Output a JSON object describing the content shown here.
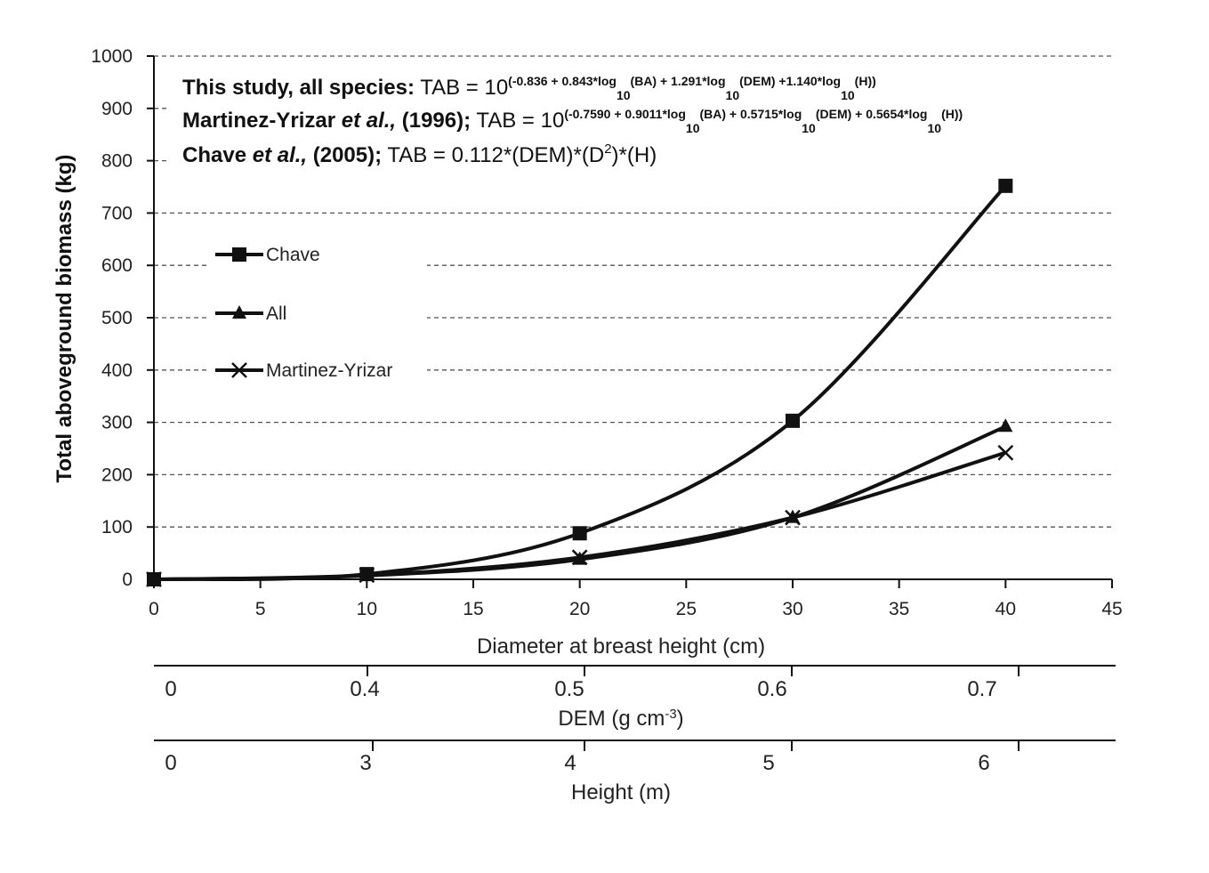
{
  "chart_data": {
    "type": "line",
    "ylabel": "Total aboveground biomass (kg)",
    "xlabel": "Diameter at breast height (cm)",
    "xlim": [
      0,
      45
    ],
    "ylim": [
      0,
      1000
    ],
    "x_ticks": [
      0,
      5,
      10,
      15,
      20,
      25,
      30,
      35,
      40,
      45
    ],
    "y_ticks": [
      0,
      100,
      200,
      300,
      400,
      500,
      600,
      700,
      800,
      900,
      1000
    ],
    "grid": true,
    "x": [
      0,
      10,
      20,
      30,
      40
    ],
    "series": [
      {
        "name": "Chave",
        "marker": "square",
        "values": [
          0,
          10,
          88,
          303,
          752
        ]
      },
      {
        "name": "All",
        "marker": "triangle",
        "values": [
          0,
          7,
          38,
          118,
          292
        ]
      },
      {
        "name": "Martinez-Yrizar",
        "marker": "x",
        "values": [
          0,
          8,
          42,
          118,
          242
        ]
      }
    ],
    "secondary_axes": [
      {
        "title": "DEM (g cm",
        "title_sup": "-3",
        "title_end": ")",
        "ticks": [
          "0",
          "0.4",
          "0.5",
          "0.6",
          "0.7"
        ]
      },
      {
        "title": "Height (m)",
        "ticks": [
          "0",
          "3",
          "4",
          "5",
          "6"
        ]
      }
    ],
    "legend_placement": "left",
    "equations": [
      {
        "label_bold": "This study, all species:",
        "text": " TAB = 10",
        "sup1": "(-0.836 + 0.843*log",
        "sub1": "10",
        "sup2": "(BA) + 1.291*log",
        "sub2": "10",
        "sup3": "(DEM) +1.140*log",
        "sub3": "10",
        "sup4": "(H))"
      },
      {
        "label_bold": "Martinez-Yrizar",
        "label_italic": " et al.,",
        "label_bold2": " (1996);",
        "text": " TAB = 10",
        "sup1": "(-0.7590 + 0.9011*log",
        "sub1": "10",
        "sup2": "(BA) + 0.5715*log",
        "sub2": "10",
        "sup3": "(DEM) + 0.5654*log",
        "sub3": "10",
        "sup4": "(H))"
      },
      {
        "label_bold": "Chave",
        "label_italic": " et al.,",
        "label_bold2": " (2005);",
        "text": " TAB = 0.112*(DEM)*(D",
        "sup": "2",
        "text2": ")*(H)"
      }
    ]
  }
}
